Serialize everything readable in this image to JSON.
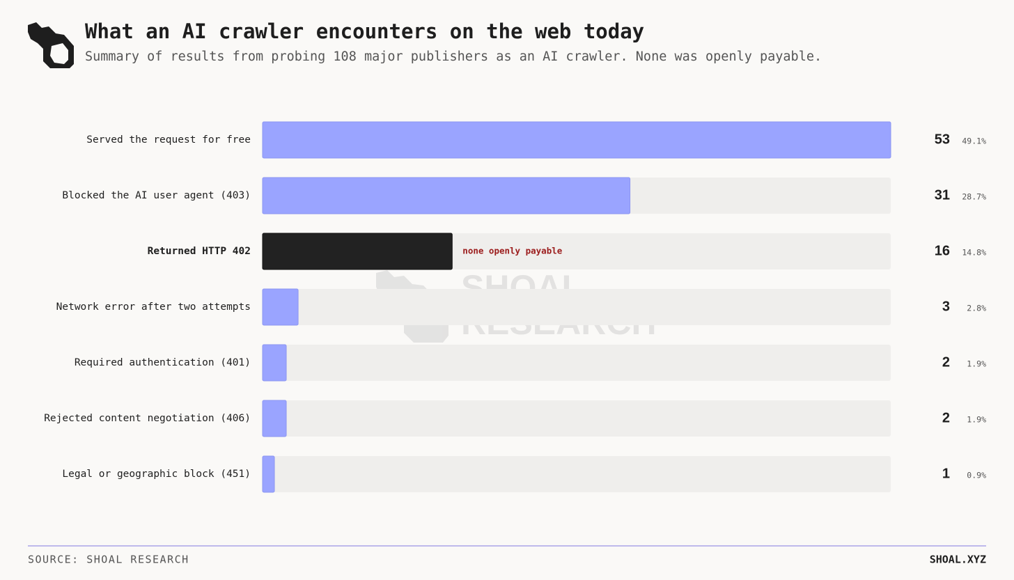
{
  "chart_data": {
    "type": "hbar",
    "title": "What an AI crawler encounters on the web today",
    "subtitle": "Summary of results from probing 108 major publishers as an AI crawler. None was openly payable.",
    "categories": [
      "Served the request for free",
      "Blocked the AI user agent (403)",
      "Returned HTTP 402",
      "Network error after two attempts",
      "Required authentication (401)",
      "Rejected content negotiation (406)",
      "Legal or geographic block (451)"
    ],
    "values": [
      53,
      31,
      16,
      3,
      2,
      2,
      1
    ],
    "shares": [
      {
        "value": 49.1,
        "label": "49.1%"
      },
      {
        "value": 28.7,
        "label": "28.7%"
      },
      {
        "value": 14.8,
        "label": "14.8%"
      },
      {
        "value": 2.8,
        "label": "2.8%"
      },
      {
        "value": 1.9,
        "label": "1.9%"
      },
      {
        "value": 1.9,
        "label": "1.9%"
      },
      {
        "value": 0.9,
        "label": "0.9%"
      }
    ],
    "colors": [
      "#9aa4ff",
      "#9aa4ff",
      "#222222",
      "#9aa4ff",
      "#9aa4ff",
      "#9aa4ff",
      "#9aa4ff"
    ],
    "xlim": [
      0,
      53
    ],
    "annotations": [
      {
        "category_index": 2,
        "text": "none openly payable",
        "color": "#9b1b1b"
      }
    ],
    "watermark": [
      "SHOAL",
      "RESEARCH"
    ],
    "source": "SOURCE: SHOAL RESEARCH",
    "site": "SHOAL.XYZ"
  }
}
